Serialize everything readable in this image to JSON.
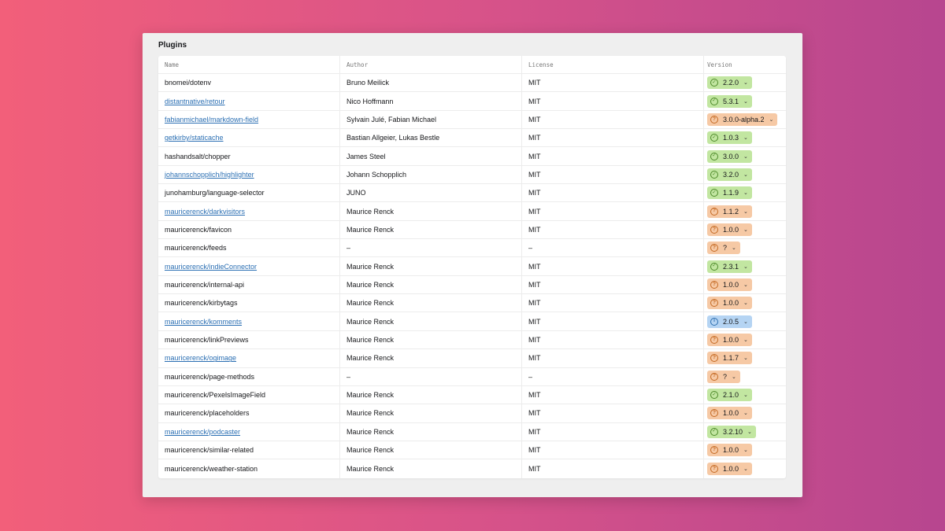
{
  "panel": {
    "title": "Plugins"
  },
  "table": {
    "headers": {
      "name": "Name",
      "author": "Author",
      "license": "License",
      "version": "Version"
    },
    "rows": [
      {
        "name": "bnomei/dotenv",
        "link": false,
        "author": "Bruno Meilick",
        "license": "MIT",
        "version": "2.2.0",
        "status": "ok",
        "icon": "check-circle-icon"
      },
      {
        "name": "distantnative/retour",
        "link": true,
        "author": "Nico Hoffmann",
        "license": "MIT",
        "version": "5.3.1",
        "status": "ok",
        "icon": "check-circle-icon"
      },
      {
        "name": "fabianmichael/markdown-field",
        "link": true,
        "author": "Sylvain Julé, Fabian Michael",
        "license": "MIT",
        "version": "3.0.0-alpha.2",
        "status": "warn",
        "icon": "question-circle-icon"
      },
      {
        "name": "getkirby/staticache",
        "link": true,
        "author": "Bastian Allgeier, Lukas Bestle",
        "license": "MIT",
        "version": "1.0.3",
        "status": "ok",
        "icon": "check-circle-icon"
      },
      {
        "name": "hashandsalt/chopper",
        "link": false,
        "author": "James Steel",
        "license": "MIT",
        "version": "3.0.0",
        "status": "ok",
        "icon": "check-circle-icon"
      },
      {
        "name": "johannschopplich/highlighter",
        "link": true,
        "author": "Johann Schopplich",
        "license": "MIT",
        "version": "3.2.0",
        "status": "ok",
        "icon": "check-circle-icon"
      },
      {
        "name": "junohamburg/language-selector",
        "link": false,
        "author": "JUNO",
        "license": "MIT",
        "version": "1.1.9",
        "status": "ok",
        "icon": "check-circle-icon"
      },
      {
        "name": "mauricerenck/darkvisitors",
        "link": true,
        "author": "Maurice Renck",
        "license": "MIT",
        "version": "1.1.2",
        "status": "warn",
        "icon": "question-circle-icon"
      },
      {
        "name": "mauricerenck/favicon",
        "link": false,
        "author": "Maurice Renck",
        "license": "MIT",
        "version": "1.0.0",
        "status": "warn",
        "icon": "question-circle-icon"
      },
      {
        "name": "mauricerenck/feeds",
        "link": false,
        "author": "–",
        "license": "–",
        "version": "?",
        "status": "warn",
        "icon": "question-circle-icon"
      },
      {
        "name": "mauricerenck/indieConnector",
        "link": true,
        "author": "Maurice Renck",
        "license": "MIT",
        "version": "2.3.1",
        "status": "ok",
        "icon": "check-circle-icon"
      },
      {
        "name": "mauricerenck/internal-api",
        "link": false,
        "author": "Maurice Renck",
        "license": "MIT",
        "version": "1.0.0",
        "status": "warn",
        "icon": "question-circle-icon"
      },
      {
        "name": "mauricerenck/kirbytags",
        "link": false,
        "author": "Maurice Renck",
        "license": "MIT",
        "version": "1.0.0",
        "status": "warn",
        "icon": "question-circle-icon"
      },
      {
        "name": "mauricerenck/komments",
        "link": true,
        "author": "Maurice Renck",
        "license": "MIT",
        "version": "2.0.5",
        "status": "info",
        "icon": "info-circle-icon"
      },
      {
        "name": "mauricerenck/linkPreviews",
        "link": false,
        "author": "Maurice Renck",
        "license": "MIT",
        "version": "1.0.0",
        "status": "warn",
        "icon": "question-circle-icon"
      },
      {
        "name": "mauricerenck/ogimage",
        "link": true,
        "author": "Maurice Renck",
        "license": "MIT",
        "version": "1.1.7",
        "status": "warn",
        "icon": "question-circle-icon"
      },
      {
        "name": "mauricerenck/page-methods",
        "link": false,
        "author": "–",
        "license": "–",
        "version": "?",
        "status": "warn",
        "icon": "question-circle-icon"
      },
      {
        "name": "mauricerenck/PexelsImageField",
        "link": false,
        "author": "Maurice Renck",
        "license": "MIT",
        "version": "2.1.0",
        "status": "ok",
        "icon": "check-circle-icon"
      },
      {
        "name": "mauricerenck/placeholders",
        "link": false,
        "author": "Maurice Renck",
        "license": "MIT",
        "version": "1.0.0",
        "status": "warn",
        "icon": "question-circle-icon"
      },
      {
        "name": "mauricerenck/podcaster",
        "link": true,
        "author": "Maurice Renck",
        "license": "MIT",
        "version": "3.2.10",
        "status": "ok",
        "icon": "check-circle-icon"
      },
      {
        "name": "mauricerenck/similar-related",
        "link": false,
        "author": "Maurice Renck",
        "license": "MIT",
        "version": "1.0.0",
        "status": "warn",
        "icon": "question-circle-icon"
      },
      {
        "name": "mauricerenck/weather-station",
        "link": false,
        "author": "Maurice Renck",
        "license": "MIT",
        "version": "1.0.0",
        "status": "warn",
        "icon": "question-circle-icon"
      }
    ]
  },
  "colors": {
    "ok": "#c2e6a1",
    "warn": "#f6c9a5",
    "info": "#b5d4f3",
    "link": "#2b6fb3"
  }
}
